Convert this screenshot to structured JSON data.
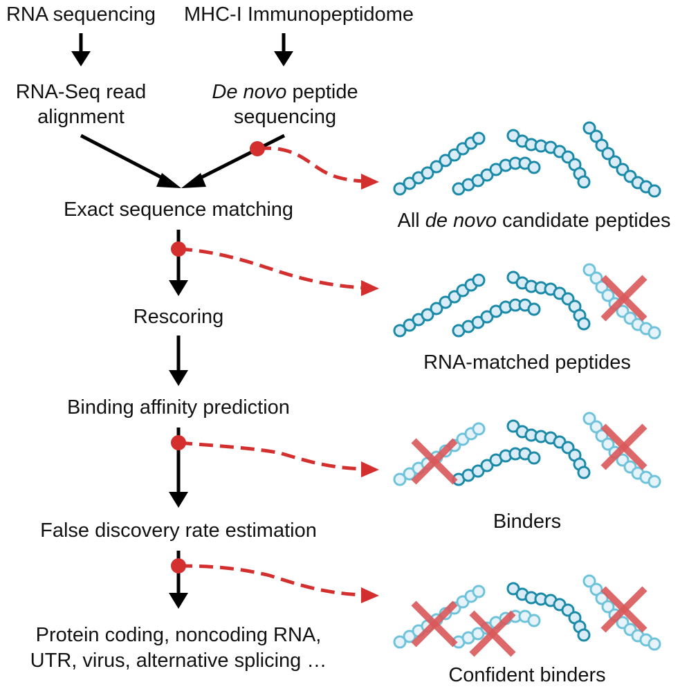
{
  "colors": {
    "arrow": "#000000",
    "branch": "#d32f2f",
    "peptide_dark": "#1a8aa8",
    "peptide_light": "#6ec3da",
    "bead_fill": "#d9ecf7",
    "cross": "#d9585a"
  },
  "inputs": {
    "rna_sequencing": "RNA sequencing",
    "immunopeptidome": "MHC-I Immunopeptidome"
  },
  "steps": {
    "alignment": [
      "RNA-Seq read",
      "alignment"
    ],
    "denovo": {
      "italic": "De novo",
      "rest": " peptide",
      "line2": "sequencing"
    },
    "exact_matching": "Exact sequence matching",
    "rescoring": "Rescoring",
    "binding": "Binding affinity prediction",
    "fdr": "False discovery rate estimation",
    "categories": [
      "Protein coding, noncoding RNA,",
      "UTR, virus, alternative splicing …"
    ]
  },
  "outputs": {
    "all_candidates": {
      "prefix": "All ",
      "italic": "de novo",
      "suffix": " candidate peptides"
    },
    "rna_matched": "RNA-matched peptides",
    "binders": "Binders",
    "confident": "Confident binders"
  },
  "peptide_groups": [
    {
      "stage": "all_candidates",
      "removed": []
    },
    {
      "stage": "rna_matched",
      "removed": [
        "right"
      ]
    },
    {
      "stage": "binders",
      "removed": [
        "left",
        "right"
      ]
    },
    {
      "stage": "confident",
      "removed": [
        "left",
        "middle",
        "right"
      ]
    }
  ],
  "icons": [
    "down-arrow-icon",
    "filter-branch-arrow-icon",
    "peptide-chain-icon",
    "removed-cross-icon"
  ]
}
